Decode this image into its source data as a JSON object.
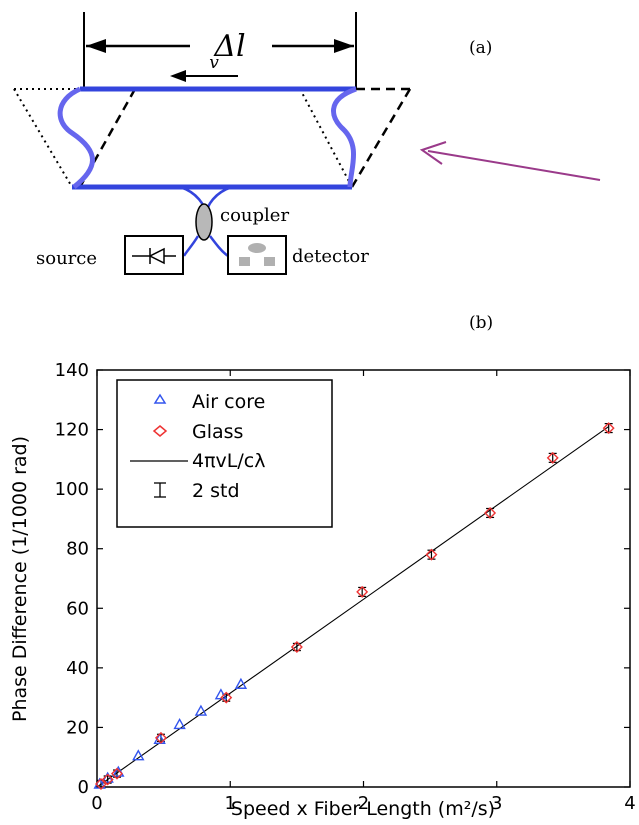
{
  "panel_a": {
    "label": "(a)",
    "delta_l": "Δl",
    "velocity": "v",
    "coupler": "coupler",
    "source": "source",
    "detector": "detector"
  },
  "panel_b": {
    "label": "(b)"
  },
  "colors": {
    "fiber_blue": "#6666ee",
    "base_blue": "#3344dd",
    "arrow_purple": "#9a3a8a",
    "air_core": "#3355ee",
    "glass": "#ee3333"
  },
  "chart_data": {
    "type": "scatter",
    "xlabel": "Speed x Fiber Length (m²/s)",
    "ylabel": "Phase Difference (1/1000 rad)",
    "xlim": [
      0,
      4
    ],
    "ylim": [
      0,
      140
    ],
    "xticks": [
      "0",
      "1",
      "2",
      "3",
      "4"
    ],
    "yticks": [
      "0",
      "20",
      "40",
      "60",
      "80",
      "100",
      "120",
      "140"
    ],
    "legend_position": "top-left",
    "series": [
      {
        "name": "Air core",
        "marker": "triangle",
        "color": "#3355ee",
        "x": [
          0.02,
          0.08,
          0.16,
          0.31,
          0.47,
          0.62,
          0.78,
          0.93,
          1.08
        ],
        "y": [
          1.0,
          3.0,
          5.0,
          10.5,
          16.0,
          21.0,
          25.5,
          31.0,
          34.5
        ]
      },
      {
        "name": "Glass",
        "marker": "diamond",
        "color": "#ee3333",
        "x": [
          0.03,
          0.08,
          0.15,
          0.48,
          0.97,
          1.5,
          1.99,
          2.51,
          2.95,
          3.42,
          3.84
        ],
        "y": [
          1.0,
          2.5,
          4.5,
          16.5,
          30.0,
          47.0,
          65.5,
          78.0,
          92.0,
          110.5,
          120.5
        ]
      }
    ],
    "fit_line": {
      "name": "4πvL/cλ",
      "x": [
        0,
        3.84
      ],
      "y": [
        0,
        121
      ]
    },
    "errorbars": {
      "name": "2 std",
      "x": [
        0.03,
        0.08,
        0.15,
        0.48,
        0.97,
        1.5,
        1.99,
        2.51,
        2.95,
        3.42,
        3.84
      ],
      "y": [
        1.0,
        2.5,
        4.5,
        16.5,
        30.0,
        47.0,
        65.5,
        78.0,
        92.0,
        110.5,
        120.5
      ],
      "err": [
        1.2,
        1.2,
        1.2,
        1.2,
        1.2,
        1.2,
        1.5,
        1.5,
        1.5,
        1.5,
        1.5
      ]
    }
  }
}
